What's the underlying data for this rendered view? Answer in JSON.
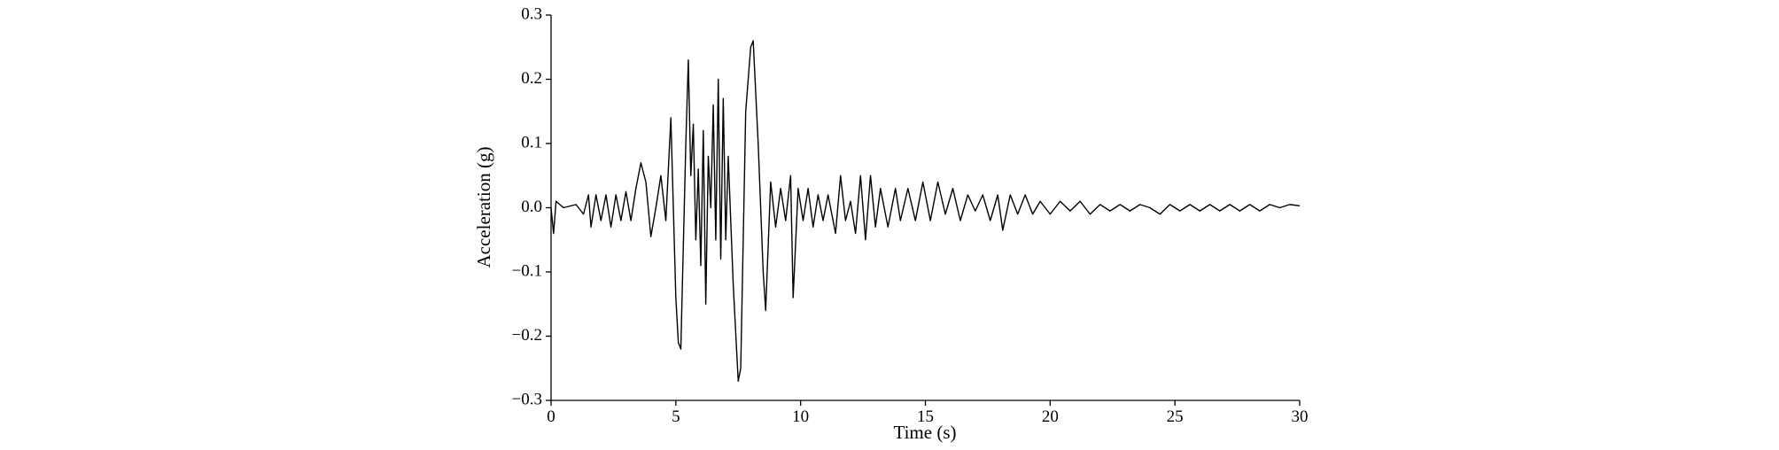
{
  "chart_data": {
    "type": "line",
    "xlabel": "Time (s)",
    "ylabel": "Acceleration (g)",
    "color": "#000000",
    "x": [
      0,
      0.1,
      0.2,
      0.5,
      1.0,
      1.3,
      1.5,
      1.6,
      1.8,
      2.0,
      2.2,
      2.4,
      2.6,
      2.8,
      3.0,
      3.2,
      3.4,
      3.6,
      3.8,
      4.0,
      4.2,
      4.4,
      4.6,
      4.8,
      5.0,
      5.1,
      5.2,
      5.4,
      5.5,
      5.6,
      5.7,
      5.8,
      5.9,
      6.0,
      6.1,
      6.2,
      6.3,
      6.4,
      6.5,
      6.6,
      6.7,
      6.8,
      6.9,
      7.0,
      7.1,
      7.3,
      7.5,
      7.6,
      7.8,
      8.0,
      8.1,
      8.3,
      8.5,
      8.6,
      8.8,
      9.0,
      9.2,
      9.4,
      9.6,
      9.7,
      9.9,
      10.1,
      10.3,
      10.5,
      10.7,
      10.9,
      11.1,
      11.4,
      11.6,
      11.8,
      12.0,
      12.2,
      12.4,
      12.6,
      12.8,
      13.0,
      13.2,
      13.5,
      13.8,
      14.0,
      14.3,
      14.6,
      14.9,
      15.2,
      15.5,
      15.8,
      16.1,
      16.4,
      16.7,
      17.0,
      17.3,
      17.6,
      17.9,
      18.1,
      18.4,
      18.7,
      19.0,
      19.3,
      19.6,
      20.0,
      20.4,
      20.8,
      21.2,
      21.6,
      22.0,
      22.4,
      22.8,
      23.2,
      23.6,
      24.0,
      24.4,
      24.8,
      25.2,
      25.6,
      26.0,
      26.4,
      26.8,
      27.2,
      27.6,
      28.0,
      28.4,
      28.8,
      29.2,
      29.6,
      30.0
    ],
    "values": [
      0,
      -0.04,
      0.01,
      0.0,
      0.005,
      -0.01,
      0.02,
      -0.03,
      0.02,
      -0.02,
      0.02,
      -0.03,
      0.02,
      -0.02,
      0.025,
      -0.02,
      0.03,
      0.07,
      0.04,
      -0.045,
      0.0,
      0.05,
      -0.02,
      0.14,
      -0.14,
      -0.21,
      -0.22,
      0.1,
      0.23,
      0.05,
      0.13,
      -0.05,
      0.06,
      -0.09,
      0.12,
      -0.15,
      0.08,
      0.0,
      0.16,
      -0.05,
      0.2,
      -0.08,
      0.17,
      -0.05,
      0.08,
      -0.12,
      -0.27,
      -0.25,
      0.15,
      0.25,
      0.26,
      0.1,
      -0.1,
      -0.16,
      0.04,
      -0.03,
      0.03,
      -0.02,
      0.05,
      -0.14,
      0.03,
      -0.02,
      0.03,
      -0.03,
      0.02,
      -0.02,
      0.02,
      -0.04,
      0.05,
      -0.02,
      0.01,
      -0.04,
      0.05,
      -0.05,
      0.05,
      -0.03,
      0.03,
      -0.03,
      0.03,
      -0.02,
      0.03,
      -0.02,
      0.04,
      -0.02,
      0.04,
      -0.01,
      0.03,
      -0.02,
      0.02,
      -0.005,
      0.02,
      -0.02,
      0.02,
      -0.035,
      0.02,
      -0.01,
      0.02,
      -0.01,
      0.01,
      -0.01,
      0.01,
      -0.005,
      0.01,
      -0.01,
      0.005,
      -0.005,
      0.005,
      -0.005,
      0.005,
      0.0,
      -0.01,
      0.005,
      -0.005,
      0.005,
      -0.005,
      0.005,
      -0.005,
      0.005,
      -0.005,
      0.005,
      -0.005,
      0.005,
      0.0,
      0.005,
      0.003
    ],
    "xlim": [
      0,
      30
    ],
    "xticks": [
      0,
      5,
      10,
      15,
      20,
      25,
      30
    ],
    "ylim": [
      -0.3,
      0.3
    ],
    "yticks": [
      {
        "value": -0.3,
        "label": "−0.3"
      },
      {
        "value": -0.2,
        "label": "−0.2"
      },
      {
        "value": -0.1,
        "label": "−0.1"
      },
      {
        "value": 0,
        "label": "0.0"
      },
      0.1,
      0.2,
      0.3
    ]
  }
}
